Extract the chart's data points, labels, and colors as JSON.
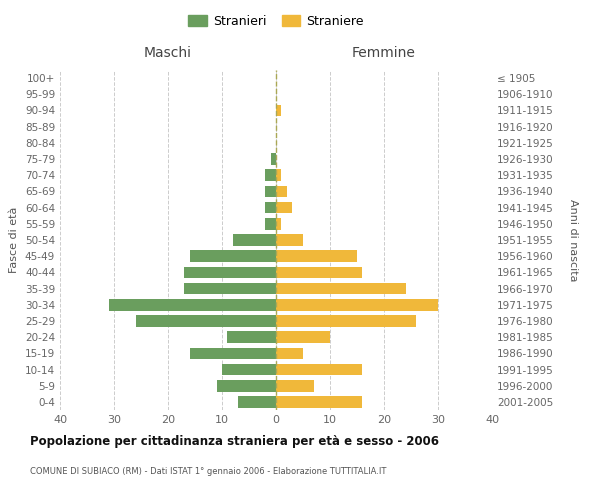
{
  "age_groups": [
    "0-4",
    "5-9",
    "10-14",
    "15-19",
    "20-24",
    "25-29",
    "30-34",
    "35-39",
    "40-44",
    "45-49",
    "50-54",
    "55-59",
    "60-64",
    "65-69",
    "70-74",
    "75-79",
    "80-84",
    "85-89",
    "90-94",
    "95-99",
    "100+"
  ],
  "birth_years": [
    "2001-2005",
    "1996-2000",
    "1991-1995",
    "1986-1990",
    "1981-1985",
    "1976-1980",
    "1971-1975",
    "1966-1970",
    "1961-1965",
    "1956-1960",
    "1951-1955",
    "1946-1950",
    "1941-1945",
    "1936-1940",
    "1931-1935",
    "1926-1930",
    "1921-1925",
    "1916-1920",
    "1911-1915",
    "1906-1910",
    "≤ 1905"
  ],
  "maschi": [
    7,
    11,
    10,
    16,
    9,
    26,
    31,
    17,
    17,
    16,
    8,
    2,
    2,
    2,
    2,
    1,
    0,
    0,
    0,
    0,
    0
  ],
  "femmine": [
    16,
    7,
    16,
    5,
    10,
    26,
    30,
    24,
    16,
    15,
    5,
    1,
    3,
    2,
    1,
    0,
    0,
    0,
    1,
    0,
    0
  ],
  "maschi_color": "#6a9e5e",
  "femmine_color": "#f0b83a",
  "title": "Popolazione per cittadinanza straniera per età e sesso - 2006",
  "subtitle": "COMUNE DI SUBIACO (RM) - Dati ISTAT 1° gennaio 2006 - Elaborazione TUTTITALIA.IT",
  "ylabel_left": "Fasce di età",
  "ylabel_right": "Anni di nascita",
  "xlabel_left": "Maschi",
  "xlabel_right": "Femmine",
  "legend_maschi": "Stranieri",
  "legend_femmine": "Straniere",
  "xlim": 40,
  "background_color": "#ffffff",
  "grid_color": "#cccccc"
}
